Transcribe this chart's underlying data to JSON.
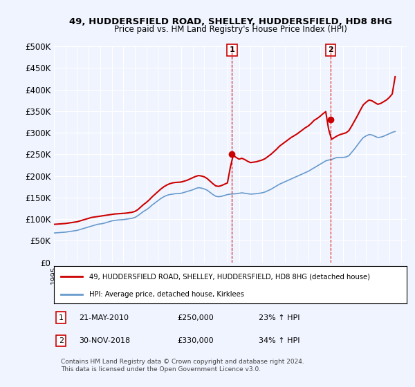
{
  "title1": "49, HUDDERSFIELD ROAD, SHELLEY, HUDDERSFIELD, HD8 8HG",
  "title2": "Price paid vs. HM Land Registry's House Price Index (HPI)",
  "ylabel_ticks": [
    "£0",
    "£50K",
    "£100K",
    "£150K",
    "£200K",
    "£250K",
    "£300K",
    "£350K",
    "£400K",
    "£450K",
    "£500K"
  ],
  "ylim": [
    0,
    500000
  ],
  "xlim_start": 1995.0,
  "xlim_end": 2025.5,
  "background_color": "#f0f4ff",
  "plot_bg_color": "#f0f4ff",
  "grid_color": "#ffffff",
  "red_color": "#cc0000",
  "blue_color": "#6699cc",
  "marker1_x": 2010.39,
  "marker1_y": 250000,
  "marker2_x": 2018.92,
  "marker2_y": 330000,
  "annotation1_label": "1",
  "annotation2_label": "2",
  "legend_line1": "49, HUDDERSFIELD ROAD, SHELLEY, HUDDERSFIELD, HD8 8HG (detached house)",
  "legend_line2": "HPI: Average price, detached house, Kirklees",
  "table_row1": "1    21-MAY-2010         £250,000        23% ↑ HPI",
  "table_row2": "2    30-NOV-2018         £330,000        34% ↑ HPI",
  "footnote": "Contains HM Land Registry data © Crown copyright and database right 2024.\nThis data is licensed under the Open Government Licence v3.0.",
  "hpi_data_x": [
    1995.0,
    1995.25,
    1995.5,
    1995.75,
    1996.0,
    1996.25,
    1996.5,
    1996.75,
    1997.0,
    1997.25,
    1997.5,
    1997.75,
    1998.0,
    1998.25,
    1998.5,
    1998.75,
    1999.0,
    1999.25,
    1999.5,
    1999.75,
    2000.0,
    2000.25,
    2000.5,
    2000.75,
    2001.0,
    2001.25,
    2001.5,
    2001.75,
    2002.0,
    2002.25,
    2002.5,
    2002.75,
    2003.0,
    2003.25,
    2003.5,
    2003.75,
    2004.0,
    2004.25,
    2004.5,
    2004.75,
    2005.0,
    2005.25,
    2005.5,
    2005.75,
    2006.0,
    2006.25,
    2006.5,
    2006.75,
    2007.0,
    2007.25,
    2007.5,
    2007.75,
    2008.0,
    2008.25,
    2008.5,
    2008.75,
    2009.0,
    2009.25,
    2009.5,
    2009.75,
    2010.0,
    2010.25,
    2010.5,
    2010.75,
    2011.0,
    2011.25,
    2011.5,
    2011.75,
    2012.0,
    2012.25,
    2012.5,
    2012.75,
    2013.0,
    2013.25,
    2013.5,
    2013.75,
    2014.0,
    2014.25,
    2014.5,
    2014.75,
    2015.0,
    2015.25,
    2015.5,
    2015.75,
    2016.0,
    2016.25,
    2016.5,
    2016.75,
    2017.0,
    2017.25,
    2017.5,
    2017.75,
    2018.0,
    2018.25,
    2018.5,
    2018.75,
    2019.0,
    2019.25,
    2019.5,
    2019.75,
    2020.0,
    2020.25,
    2020.5,
    2020.75,
    2021.0,
    2021.25,
    2021.5,
    2021.75,
    2022.0,
    2022.25,
    2022.5,
    2022.75,
    2023.0,
    2023.25,
    2023.5,
    2023.75,
    2024.0,
    2024.25,
    2024.5
  ],
  "hpi_data_y": [
    68000,
    68500,
    69000,
    69500,
    70000,
    71000,
    72000,
    73000,
    74000,
    76000,
    78000,
    80000,
    82000,
    84000,
    86000,
    88000,
    89000,
    90000,
    92000,
    94000,
    96000,
    97000,
    98000,
    98500,
    99000,
    100000,
    101000,
    102000,
    104000,
    108000,
    113000,
    118000,
    122000,
    127000,
    133000,
    138000,
    143000,
    148000,
    152000,
    155000,
    157000,
    158000,
    159000,
    159500,
    160000,
    162000,
    164000,
    166000,
    168000,
    171000,
    173000,
    172000,
    170000,
    167000,
    162000,
    157000,
    153000,
    152000,
    153000,
    155000,
    157000,
    158000,
    158500,
    159000,
    160000,
    161000,
    160000,
    159000,
    158000,
    158500,
    159000,
    160000,
    161000,
    163000,
    166000,
    169000,
    173000,
    177000,
    181000,
    184000,
    187000,
    190000,
    193000,
    196000,
    199000,
    202000,
    205000,
    208000,
    211000,
    215000,
    219000,
    223000,
    227000,
    231000,
    235000,
    237000,
    238000,
    241000,
    243000,
    243000,
    243000,
    244000,
    247000,
    255000,
    263000,
    272000,
    281000,
    289000,
    293000,
    296000,
    295000,
    292000,
    289000,
    290000,
    292000,
    295000,
    298000,
    301000,
    303000
  ],
  "property_data_x": [
    1995.0,
    1995.25,
    1995.5,
    1995.75,
    1996.0,
    1996.25,
    1996.5,
    1996.75,
    1997.0,
    1997.25,
    1997.5,
    1997.75,
    1998.0,
    1998.25,
    1998.5,
    1998.75,
    1999.0,
    1999.25,
    1999.5,
    1999.75,
    2000.0,
    2000.25,
    2000.5,
    2000.75,
    2001.0,
    2001.25,
    2001.5,
    2001.75,
    2002.0,
    2002.25,
    2002.5,
    2002.75,
    2003.0,
    2003.25,
    2003.5,
    2003.75,
    2004.0,
    2004.25,
    2004.5,
    2004.75,
    2005.0,
    2005.25,
    2005.5,
    2005.75,
    2006.0,
    2006.25,
    2006.5,
    2006.75,
    2007.0,
    2007.25,
    2007.5,
    2007.75,
    2008.0,
    2008.25,
    2008.5,
    2008.75,
    2009.0,
    2009.25,
    2009.5,
    2009.75,
    2010.0,
    2010.25,
    2010.5,
    2010.75,
    2011.0,
    2011.25,
    2011.5,
    2011.75,
    2012.0,
    2012.25,
    2012.5,
    2012.75,
    2013.0,
    2013.25,
    2013.5,
    2013.75,
    2014.0,
    2014.25,
    2014.5,
    2014.75,
    2015.0,
    2015.25,
    2015.5,
    2015.75,
    2016.0,
    2016.25,
    2016.5,
    2016.75,
    2017.0,
    2017.25,
    2017.5,
    2017.75,
    2018.0,
    2018.25,
    2018.5,
    2018.75,
    2019.0,
    2019.25,
    2019.5,
    2019.75,
    2020.0,
    2020.25,
    2020.5,
    2020.75,
    2021.0,
    2021.25,
    2021.5,
    2021.75,
    2022.0,
    2022.25,
    2022.5,
    2022.75,
    2023.0,
    2023.25,
    2023.5,
    2023.75,
    2024.0,
    2024.25,
    2024.5
  ],
  "property_data_y": [
    88000,
    88500,
    89000,
    89500,
    90000,
    91000,
    92000,
    93000,
    94000,
    96000,
    98000,
    100000,
    102000,
    104000,
    105000,
    106000,
    107000,
    108000,
    109000,
    110000,
    111000,
    112000,
    112500,
    113000,
    113500,
    114000,
    115000,
    116000,
    118000,
    122000,
    128000,
    134000,
    139000,
    145000,
    152000,
    158000,
    164000,
    170000,
    175000,
    179000,
    182000,
    184000,
    185000,
    185500,
    186000,
    188000,
    190000,
    193000,
    196000,
    199000,
    201000,
    200000,
    198000,
    194000,
    188000,
    182000,
    177000,
    176000,
    178000,
    181000,
    184000,
    220000,
    248000,
    243000,
    239000,
    241000,
    238000,
    234000,
    231000,
    232000,
    233000,
    235000,
    237000,
    240000,
    245000,
    250000,
    256000,
    262000,
    269000,
    274000,
    279000,
    284000,
    289000,
    293000,
    297000,
    302000,
    307000,
    312000,
    316000,
    322000,
    329000,
    333000,
    338000,
    344000,
    349000,
    308000,
    285000,
    289000,
    293000,
    296000,
    298000,
    300000,
    305000,
    316000,
    328000,
    340000,
    353000,
    365000,
    371000,
    376000,
    374000,
    370000,
    366000,
    368000,
    372000,
    376000,
    382000,
    390000,
    430000
  ]
}
